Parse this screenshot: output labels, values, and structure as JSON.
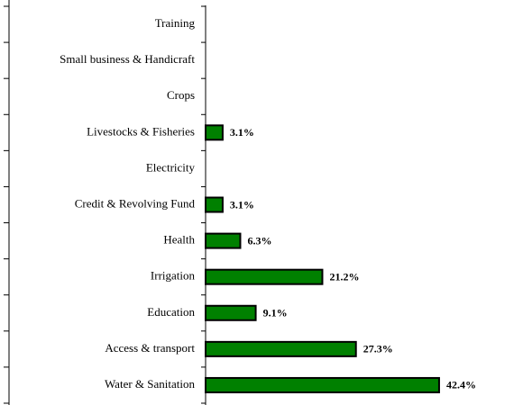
{
  "chart_data": {
    "type": "bar",
    "orientation": "horizontal",
    "categories": [
      "Training",
      "Small business & Handicraft",
      "Crops",
      "Livestocks & Fisheries",
      "Electricity",
      "Credit & Revolving Fund",
      "Health",
      "Irrigation",
      "Education",
      "Access & transport",
      "Water & Sanitation"
    ],
    "values": [
      0,
      0,
      0,
      3.1,
      0,
      3.1,
      6.3,
      21.2,
      9.1,
      27.3,
      42.4
    ],
    "value_labels": [
      null,
      null,
      null,
      "3.1%",
      null,
      "3.1%",
      "6.3%",
      "21.2%",
      "9.1%",
      "27.3%",
      "42.4%"
    ],
    "color": "#008000",
    "xlim": [
      0,
      56
    ]
  }
}
